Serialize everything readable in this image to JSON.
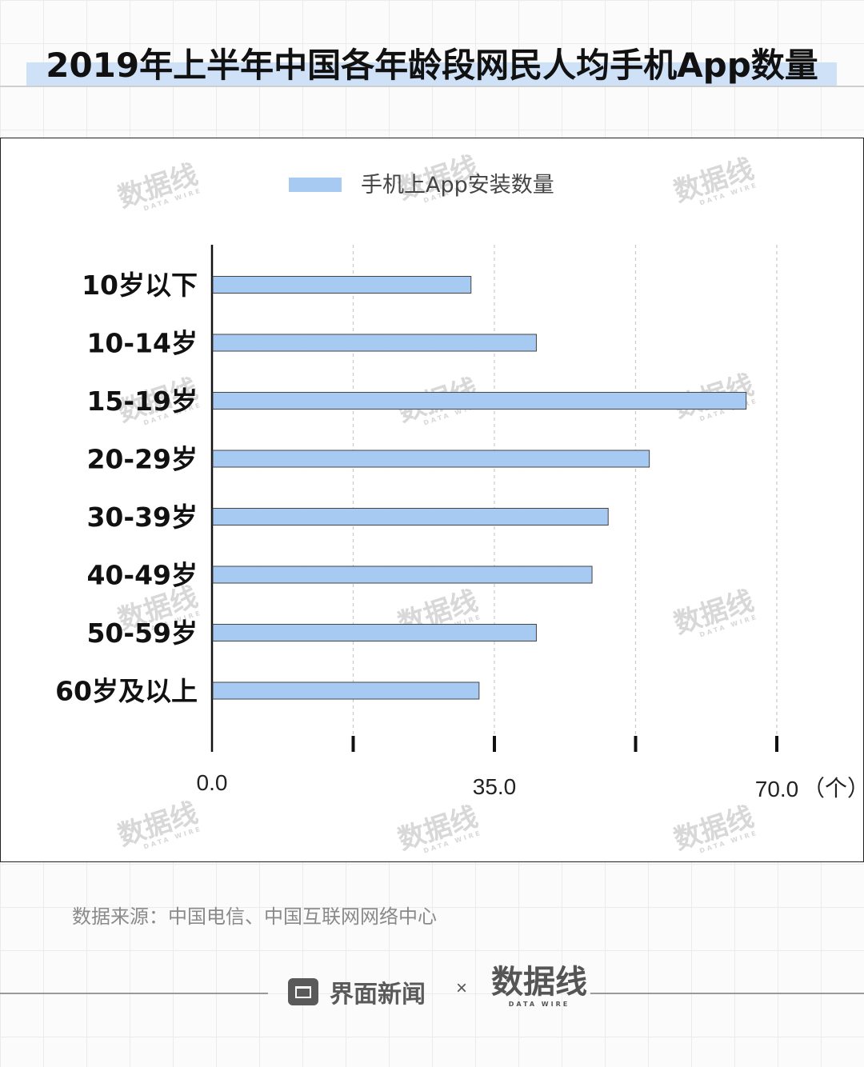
{
  "title": "2019年上半年中国各年龄段网民人均手机App数量",
  "chart_data": {
    "type": "bar",
    "orientation": "horizontal",
    "categories": [
      "10岁以下",
      "10-14岁",
      "15-19岁",
      "20-29岁",
      "30-39岁",
      "40-49岁",
      "50-59岁",
      "60岁及以上"
    ],
    "series": [
      {
        "name": "手机上App安装数量",
        "values": [
          32.1,
          40.2,
          66.2,
          54.2,
          49.1,
          47.1,
          40.2,
          33.1
        ]
      }
    ],
    "x_ticks": [
      "0.0",
      "35.0",
      "70.0"
    ],
    "x_unit": "（个）",
    "xlim": [
      0,
      70
    ],
    "grid": true,
    "legend_position": "top",
    "bar_color": "#a7caf3"
  },
  "source": "数据来源：中国电信、中国互联网网络中心",
  "brand": {
    "name": "界面新闻",
    "times": "×",
    "partner": "数据线",
    "partner_sub": "DATA WIRE"
  },
  "watermark": {
    "text": "数据线",
    "sub": "DATA WIRE"
  }
}
